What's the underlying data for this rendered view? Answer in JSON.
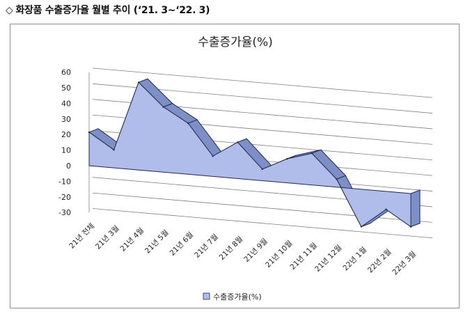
{
  "header": {
    "diamond": "◇",
    "title": "화장품 수출증가율 월별 추이 (‘21. 3~‘22. 3)"
  },
  "colors": {
    "area_front": "#b0bdea",
    "area_top": "#7e8fc8",
    "outline": "#1f2a4d",
    "grid": "#7f7f7f"
  },
  "chart_data": {
    "type": "area",
    "title": "수출증가율(%)",
    "legend": "수출증가율(%)",
    "legend_position": "bottom",
    "grid": true,
    "ylim": [
      -30,
      60
    ],
    "yticks": [
      -30,
      -20,
      -10,
      0,
      10,
      20,
      30,
      40,
      50,
      60
    ],
    "categories": [
      "21년 전체",
      "21년 3월",
      "21년 4월",
      "21년 5월",
      "21년 6월",
      "21년 7월",
      "21년 8월",
      "21년 9월",
      "21년 10월",
      "21년 11월",
      "21년 12월",
      "22년 1월",
      "22년 2월",
      "22년 3월"
    ],
    "series": [
      {
        "name": "수출증가율(%)",
        "values": [
          21.5,
          11.5,
          56.2,
          41.8,
          32.7,
          13.0,
          23.3,
          7.4,
          15.4,
          20.3,
          5.1,
          -24.0,
          -11.5,
          -21.3
        ]
      }
    ]
  }
}
